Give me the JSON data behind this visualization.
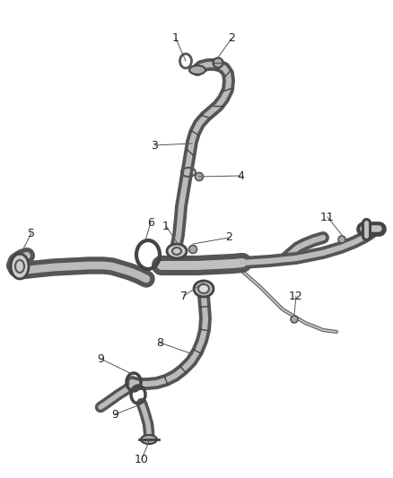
{
  "bg_color": "#ffffff",
  "tube_color": "#888888",
  "tube_edge": "#444444",
  "tube_fill": "#cccccc",
  "dark_line": "#333333",
  "mid_line": "#666666",
  "light_line": "#aaaaaa",
  "callout_color": "#555555",
  "text_color": "#222222",
  "figsize": [
    4.38,
    5.33
  ],
  "dpi": 100
}
